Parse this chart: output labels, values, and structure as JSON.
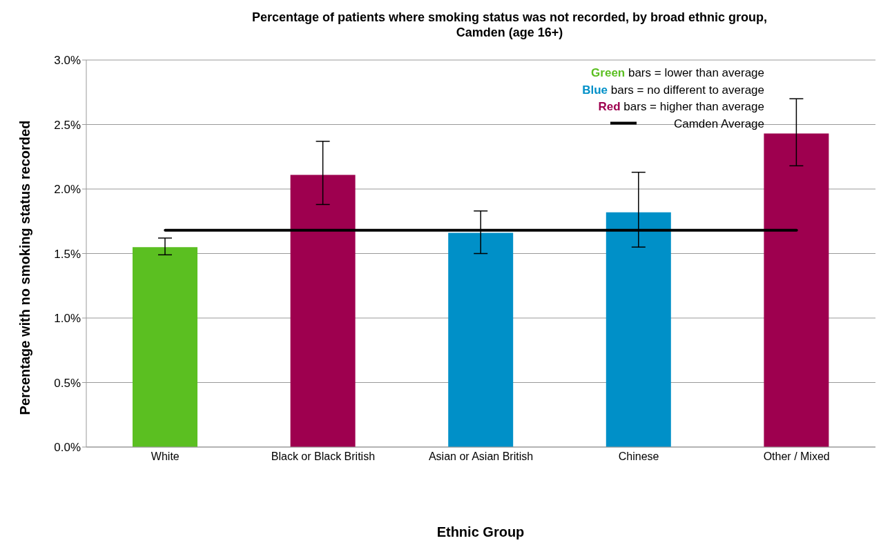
{
  "chart_data": {
    "type": "bar",
    "title": "Percentage of patients where smoking status was not recorded, by broad ethnic group, Camden (age 16+)",
    "xlabel": "Ethnic Group",
    "ylabel": "Percentage with no smoking status recorded",
    "categories": [
      "White",
      "Black or Black British",
      "Asian or Asian British",
      "Chinese",
      "Other / Mixed"
    ],
    "values": [
      1.55,
      2.11,
      1.66,
      1.82,
      2.43
    ],
    "colors": [
      "#5bbf21",
      "#9e004f",
      "#0090c8",
      "#0090c8",
      "#9e004f"
    ],
    "errors": [
      [
        1.49,
        1.62
      ],
      [
        1.88,
        2.37
      ],
      [
        1.5,
        1.83
      ],
      [
        1.55,
        2.13
      ],
      [
        2.18,
        2.7
      ]
    ],
    "ylim": [
      0,
      3
    ],
    "yticks": [
      {
        "value": 0,
        "label": "0.0%"
      },
      {
        "value": 0.5,
        "label": "0.5%"
      },
      {
        "value": 1,
        "label": "1.0%"
      },
      {
        "value": 1.5,
        "label": "1.5%"
      },
      {
        "value": 2,
        "label": "2.0%"
      },
      {
        "value": 2.5,
        "label": "2.5%"
      },
      {
        "value": 3,
        "label": "3.0%"
      }
    ],
    "ref_lines": [
      {
        "axis": "y",
        "value": 1.68,
        "label": "Camden Average",
        "color": "#000000"
      }
    ],
    "annotations": [
      "Green bars = lower than average",
      "Blue bars = no different to average",
      "Red bars = higher than average"
    ],
    "grid": "y",
    "legend": "top right"
  }
}
